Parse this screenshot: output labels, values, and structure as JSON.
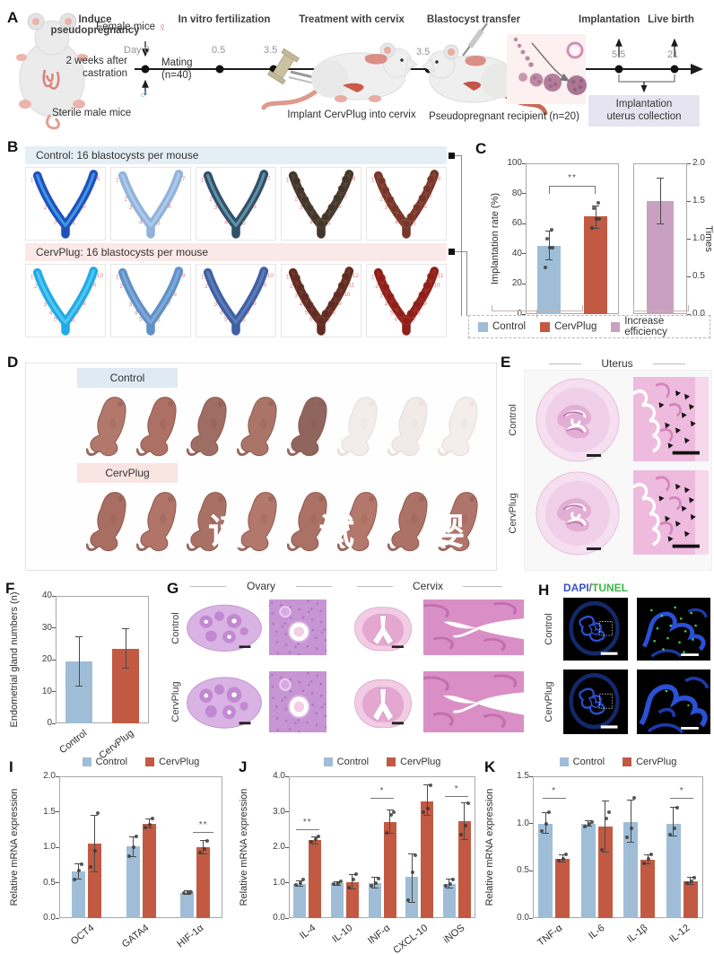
{
  "panelA": {
    "label": "A",
    "captions": [
      "Induce pseudopregnancy",
      "In vitro fertilization",
      "Treatment with cervix",
      "Blastocyst transfer",
      "Implantation",
      "Live birth"
    ],
    "female_mice": "Female mice",
    "female_symbol": "♀",
    "male_symbol": "♂",
    "sterile_male": "Sterile male mice",
    "castration_line1": "2 weeks after",
    "castration_line2": "castration",
    "day0": "Day 0",
    "mating_line1": "Mating",
    "mating_line2": "(n=40)",
    "t1": "0.5",
    "t2": "3.5",
    "t3": "3.5",
    "t4": "5.5",
    "t5": "21",
    "implant_caption": "Implant CervPlug into cervix",
    "recipient_caption": "Pseudopregnant recipient (n=20)",
    "collection_line1": "Implantation",
    "collection_line2": "uterus collection"
  },
  "panelB": {
    "label": "B",
    "rows": [
      {
        "header": "Control: 16 blastocysts per mouse",
        "images": [
          {
            "base": "#2050c0",
            "hi": "#55c8f2",
            "sites": 6
          },
          {
            "base": "#92b2dc",
            "hi": "#c2daf0",
            "sites": 7
          },
          {
            "base": "#31506a",
            "hi": "#84bccb",
            "sites": 7
          },
          {
            "base": "#413629",
            "hi": "#60503e",
            "sites": 8,
            "beaded": true
          },
          {
            "base": "#76362b",
            "hi": "#94503f",
            "sites": 8,
            "beaded": true
          }
        ]
      },
      {
        "header": "CervPlug: 16 blastocysts per mouse",
        "images": [
          {
            "base": "#22aae6",
            "hi": "#6fdcf8",
            "sites": 10
          },
          {
            "base": "#6090c6",
            "hi": "#92bce2",
            "sites": 9
          },
          {
            "base": "#3f60a2",
            "hi": "#7290c6",
            "sites": 10
          },
          {
            "base": "#5f2b22",
            "hi": "#7e4233",
            "sites": 12,
            "beaded": true
          },
          {
            "base": "#8c1f1a",
            "hi": "#ab362c",
            "sites": 11,
            "beaded": true
          }
        ]
      }
    ]
  },
  "panelC": {
    "label": "C",
    "legend": [
      {
        "label": "Control",
        "color": "#9fbdd7"
      },
      {
        "label": "CervPlug",
        "color": "#c25a43"
      },
      {
        "label": "Increase efficiency",
        "color": "#c9a0c0"
      }
    ]
  },
  "panelD": {
    "label": "D",
    "rows": [
      {
        "label": "Control",
        "pups": [
          "#b3786c",
          "#ad7065",
          "#9e6d64",
          "#aa7568",
          "#8f655e",
          "#f2ecea",
          "#f1eae9",
          "#f3edec"
        ]
      },
      {
        "label": "CervPlug",
        "pups": [
          "#a86e62",
          "#b07468",
          "#a97066",
          "#b2786b",
          "#aa7164",
          "#b3786b",
          "#ac7267",
          "#b0756a"
        ]
      }
    ],
    "watermark": "话 试 婴 全 是"
  },
  "panelE": {
    "label": "E",
    "title": "Uterus",
    "rows": [
      "Control",
      "CervPlug"
    ]
  },
  "panelF": {
    "label": "F"
  },
  "panelG": {
    "label": "G",
    "headers": [
      "Ovary",
      "Cervix"
    ],
    "rows": [
      "Control",
      "CervPlug"
    ]
  },
  "panelH": {
    "label": "H",
    "title_dapi": "DAPI",
    "title_slash": "/",
    "title_tunel": "TUNEL",
    "rows": [
      "Control",
      "CervPlug"
    ]
  },
  "panelI": {
    "label": "I"
  },
  "panelJ": {
    "label": "J"
  },
  "panelK": {
    "label": "K"
  },
  "chart_data": [
    {
      "id": "C-left",
      "type": "bar",
      "ylabel": "Implantation rate (%)",
      "ylim": [
        0,
        100
      ],
      "yticks": [
        0,
        20,
        40,
        60,
        80,
        100
      ],
      "ytick_labels": [
        "0",
        "20",
        "40",
        "60",
        "80",
        "100"
      ],
      "categories": [
        "Control",
        "CervPlug"
      ],
      "show_xticklabels": false,
      "series": [
        {
          "name": "value",
          "color": ""
        }
      ],
      "colors": [
        "#9fbdd7",
        "#c25a43"
      ],
      "values": [
        [
          45,
          65
        ]
      ],
      "errors": [
        [
          [
            36,
            55
          ],
          [
            57,
            72
          ]
        ]
      ],
      "points": [
        [
          [
            31,
            44,
            44,
            50,
            56
          ],
          [
            57,
            63,
            63,
            70,
            74
          ]
        ]
      ],
      "sig": [
        {
          "type": "bracket",
          "cats": [
            0,
            1
          ],
          "y": 85,
          "label": "**"
        }
      ]
    },
    {
      "id": "C-right",
      "type": "bar",
      "ylabel": "Times",
      "ylabel_side": "right",
      "ylim": [
        0,
        2
      ],
      "yticks": [
        0,
        0.5,
        1,
        1.5,
        2
      ],
      "ytick_labels": [
        "0.0",
        "0.5",
        "1.0",
        "1.5",
        "2.0"
      ],
      "categories": [
        "Increase efficiency"
      ],
      "show_xticklabels": false,
      "series": [
        {
          "name": "value",
          "color": ""
        }
      ],
      "colors": [
        "#c9a0c0"
      ],
      "values": [
        [
          1.5
        ]
      ],
      "errors": [
        [
          [
            1.2,
            1.8
          ]
        ]
      ]
    },
    {
      "id": "F",
      "type": "bar",
      "ylabel": "Endometrial gland numbers (n)",
      "ylim": [
        0,
        40
      ],
      "yticks": [
        0,
        10,
        20,
        30,
        40
      ],
      "ytick_labels": [
        "0",
        "10",
        "20",
        "30",
        "40"
      ],
      "categories": [
        "Control",
        "CervPlug"
      ],
      "show_xticklabels": true,
      "series": [
        {
          "name": "value",
          "color": ""
        }
      ],
      "colors": [
        "#9fbdd7",
        "#c25a43"
      ],
      "values": [
        [
          19.5,
          23.5
        ]
      ],
      "errors": [
        [
          [
            11.8,
            27.3
          ],
          [
            17.3,
            29.8
          ]
        ]
      ]
    },
    {
      "id": "I",
      "type": "bar",
      "ylabel": "Relative mRNA expression",
      "ylim": [
        0,
        2
      ],
      "yticks": [
        0,
        0.5,
        1,
        1.5,
        2
      ],
      "ytick_labels": [
        "0.0",
        "0.5",
        "1.0",
        "1.5",
        "2.0"
      ],
      "categories": [
        "OCT4",
        "GATA4",
        "HIF-1α"
      ],
      "show_xticklabels": true,
      "series": [
        {
          "name": "Control",
          "color": "#9fbdd7"
        },
        {
          "name": "CervPlug",
          "color": "#c25a43"
        }
      ],
      "legend": [
        "Control",
        "CervPlug"
      ],
      "values": [
        [
          0.66,
          1.01,
          0.36
        ],
        [
          1.05,
          1.33,
          1.0
        ]
      ],
      "errors": [
        [
          [
            0.55,
            0.77
          ],
          [
            0.87,
            1.15
          ],
          [
            0.34,
            0.38
          ]
        ],
        [
          [
            0.65,
            1.45
          ],
          [
            1.27,
            1.4
          ],
          [
            0.91,
            1.09
          ]
        ]
      ],
      "points": [
        [
          [
            0.55,
            0.67,
            0.76
          ],
          [
            0.87,
            1.0,
            1.15
          ],
          [
            0.35,
            0.36,
            0.37
          ]
        ],
        [
          [
            0.72,
            0.95,
            1.48
          ],
          [
            1.28,
            1.32,
            1.4
          ],
          [
            0.93,
            0.97,
            1.09
          ]
        ]
      ],
      "sig": [
        {
          "type": "line",
          "cat": 2,
          "series": 1,
          "y": 1.22,
          "label": "**"
        }
      ]
    },
    {
      "id": "J",
      "type": "bar",
      "ylabel": "Relative mRNA expression",
      "ylim": [
        0,
        4
      ],
      "yticks": [
        0,
        1,
        2,
        3,
        4
      ],
      "ytick_labels": [
        "0.0",
        "1.0",
        "2.0",
        "3.0",
        "4.0"
      ],
      "categories": [
        "IL-4",
        "IL-10",
        "INF-α",
        "CXCL-10",
        "iNOS"
      ],
      "show_xticklabels": true,
      "series": [
        {
          "name": "Control",
          "color": "#9fbdd7"
        },
        {
          "name": "CervPlug",
          "color": "#c25a43"
        }
      ],
      "legend": [
        "Control",
        "CervPlug"
      ],
      "values": [
        [
          0.97,
          0.98,
          1.0,
          1.17,
          0.97
        ],
        [
          2.2,
          1.02,
          2.72,
          3.3,
          2.73
        ]
      ],
      "errors": [
        [
          [
            0.9,
            1.05
          ],
          [
            0.93,
            1.03
          ],
          [
            0.85,
            1.15
          ],
          [
            0.45,
            1.8
          ],
          [
            0.85,
            1.1
          ]
        ],
        [
          [
            2.1,
            2.3
          ],
          [
            0.82,
            1.22
          ],
          [
            2.38,
            3.05
          ],
          [
            2.9,
            3.75
          ],
          [
            2.22,
            3.25
          ]
        ]
      ],
      "points": [
        [
          [
            0.93,
            0.98,
            1.08
          ],
          [
            0.95,
            0.99,
            1.03
          ],
          [
            0.9,
            1.0,
            1.12
          ],
          [
            0.5,
            1.3,
            1.78
          ],
          [
            0.9,
            0.97,
            1.08
          ]
        ],
        [
          [
            2.15,
            2.22,
            2.3
          ],
          [
            0.85,
            1.08,
            1.25
          ],
          [
            2.4,
            2.9,
            3.0
          ],
          [
            3.0,
            3.1,
            3.75
          ],
          [
            2.35,
            2.6,
            3.25
          ]
        ]
      ],
      "sig": [
        {
          "type": "line",
          "cat": 0,
          "y": 2.5,
          "label": "**"
        },
        {
          "type": "line",
          "cat": 2,
          "y": 3.38,
          "label": "*"
        },
        {
          "type": "line",
          "cat": 4,
          "y": 3.45,
          "label": "*"
        }
      ]
    },
    {
      "id": "K",
      "type": "bar",
      "ylabel": "Relative mRNA expression",
      "ylim": [
        0,
        1.5
      ],
      "yticks": [
        0,
        0.5,
        1,
        1.5
      ],
      "ytick_labels": [
        "0.0",
        "0.5",
        "1.0",
        "1.5"
      ],
      "categories": [
        "TNF-α",
        "IL-6",
        "IL-1β",
        "IL-12"
      ],
      "show_xticklabels": true,
      "series": [
        {
          "name": "Control",
          "color": "#9fbdd7"
        },
        {
          "name": "CervPlug",
          "color": "#c25a43"
        }
      ],
      "legend": [
        "Control",
        "CervPlug"
      ],
      "values": [
        [
          1.0,
          1.0,
          1.02,
          1.0
        ],
        [
          0.63,
          0.97,
          0.62,
          0.39
        ]
      ],
      "errors": [
        [
          [
            0.9,
            1.12
          ],
          [
            0.97,
            1.03
          ],
          [
            0.8,
            1.25
          ],
          [
            0.87,
            1.17
          ]
        ],
        [
          [
            0.59,
            0.67
          ],
          [
            0.7,
            1.24
          ],
          [
            0.57,
            0.67
          ],
          [
            0.36,
            0.43
          ]
        ]
      ],
      "points": [
        [
          [
            0.92,
            1.0,
            1.12
          ],
          [
            0.97,
            1.0,
            1.02
          ],
          [
            0.85,
            0.95,
            1.27
          ],
          [
            0.88,
            0.95,
            1.17
          ]
        ],
        [
          [
            0.61,
            0.63,
            0.67
          ],
          [
            0.72,
            1.05,
            1.12
          ],
          [
            0.58,
            0.63,
            0.67
          ],
          [
            0.37,
            0.39,
            0.43
          ]
        ]
      ],
      "sig": [
        {
          "type": "line",
          "cat": 0,
          "y": 1.27,
          "label": "*"
        },
        {
          "type": "line",
          "cat": 3,
          "y": 1.27,
          "label": "*"
        }
      ]
    }
  ]
}
